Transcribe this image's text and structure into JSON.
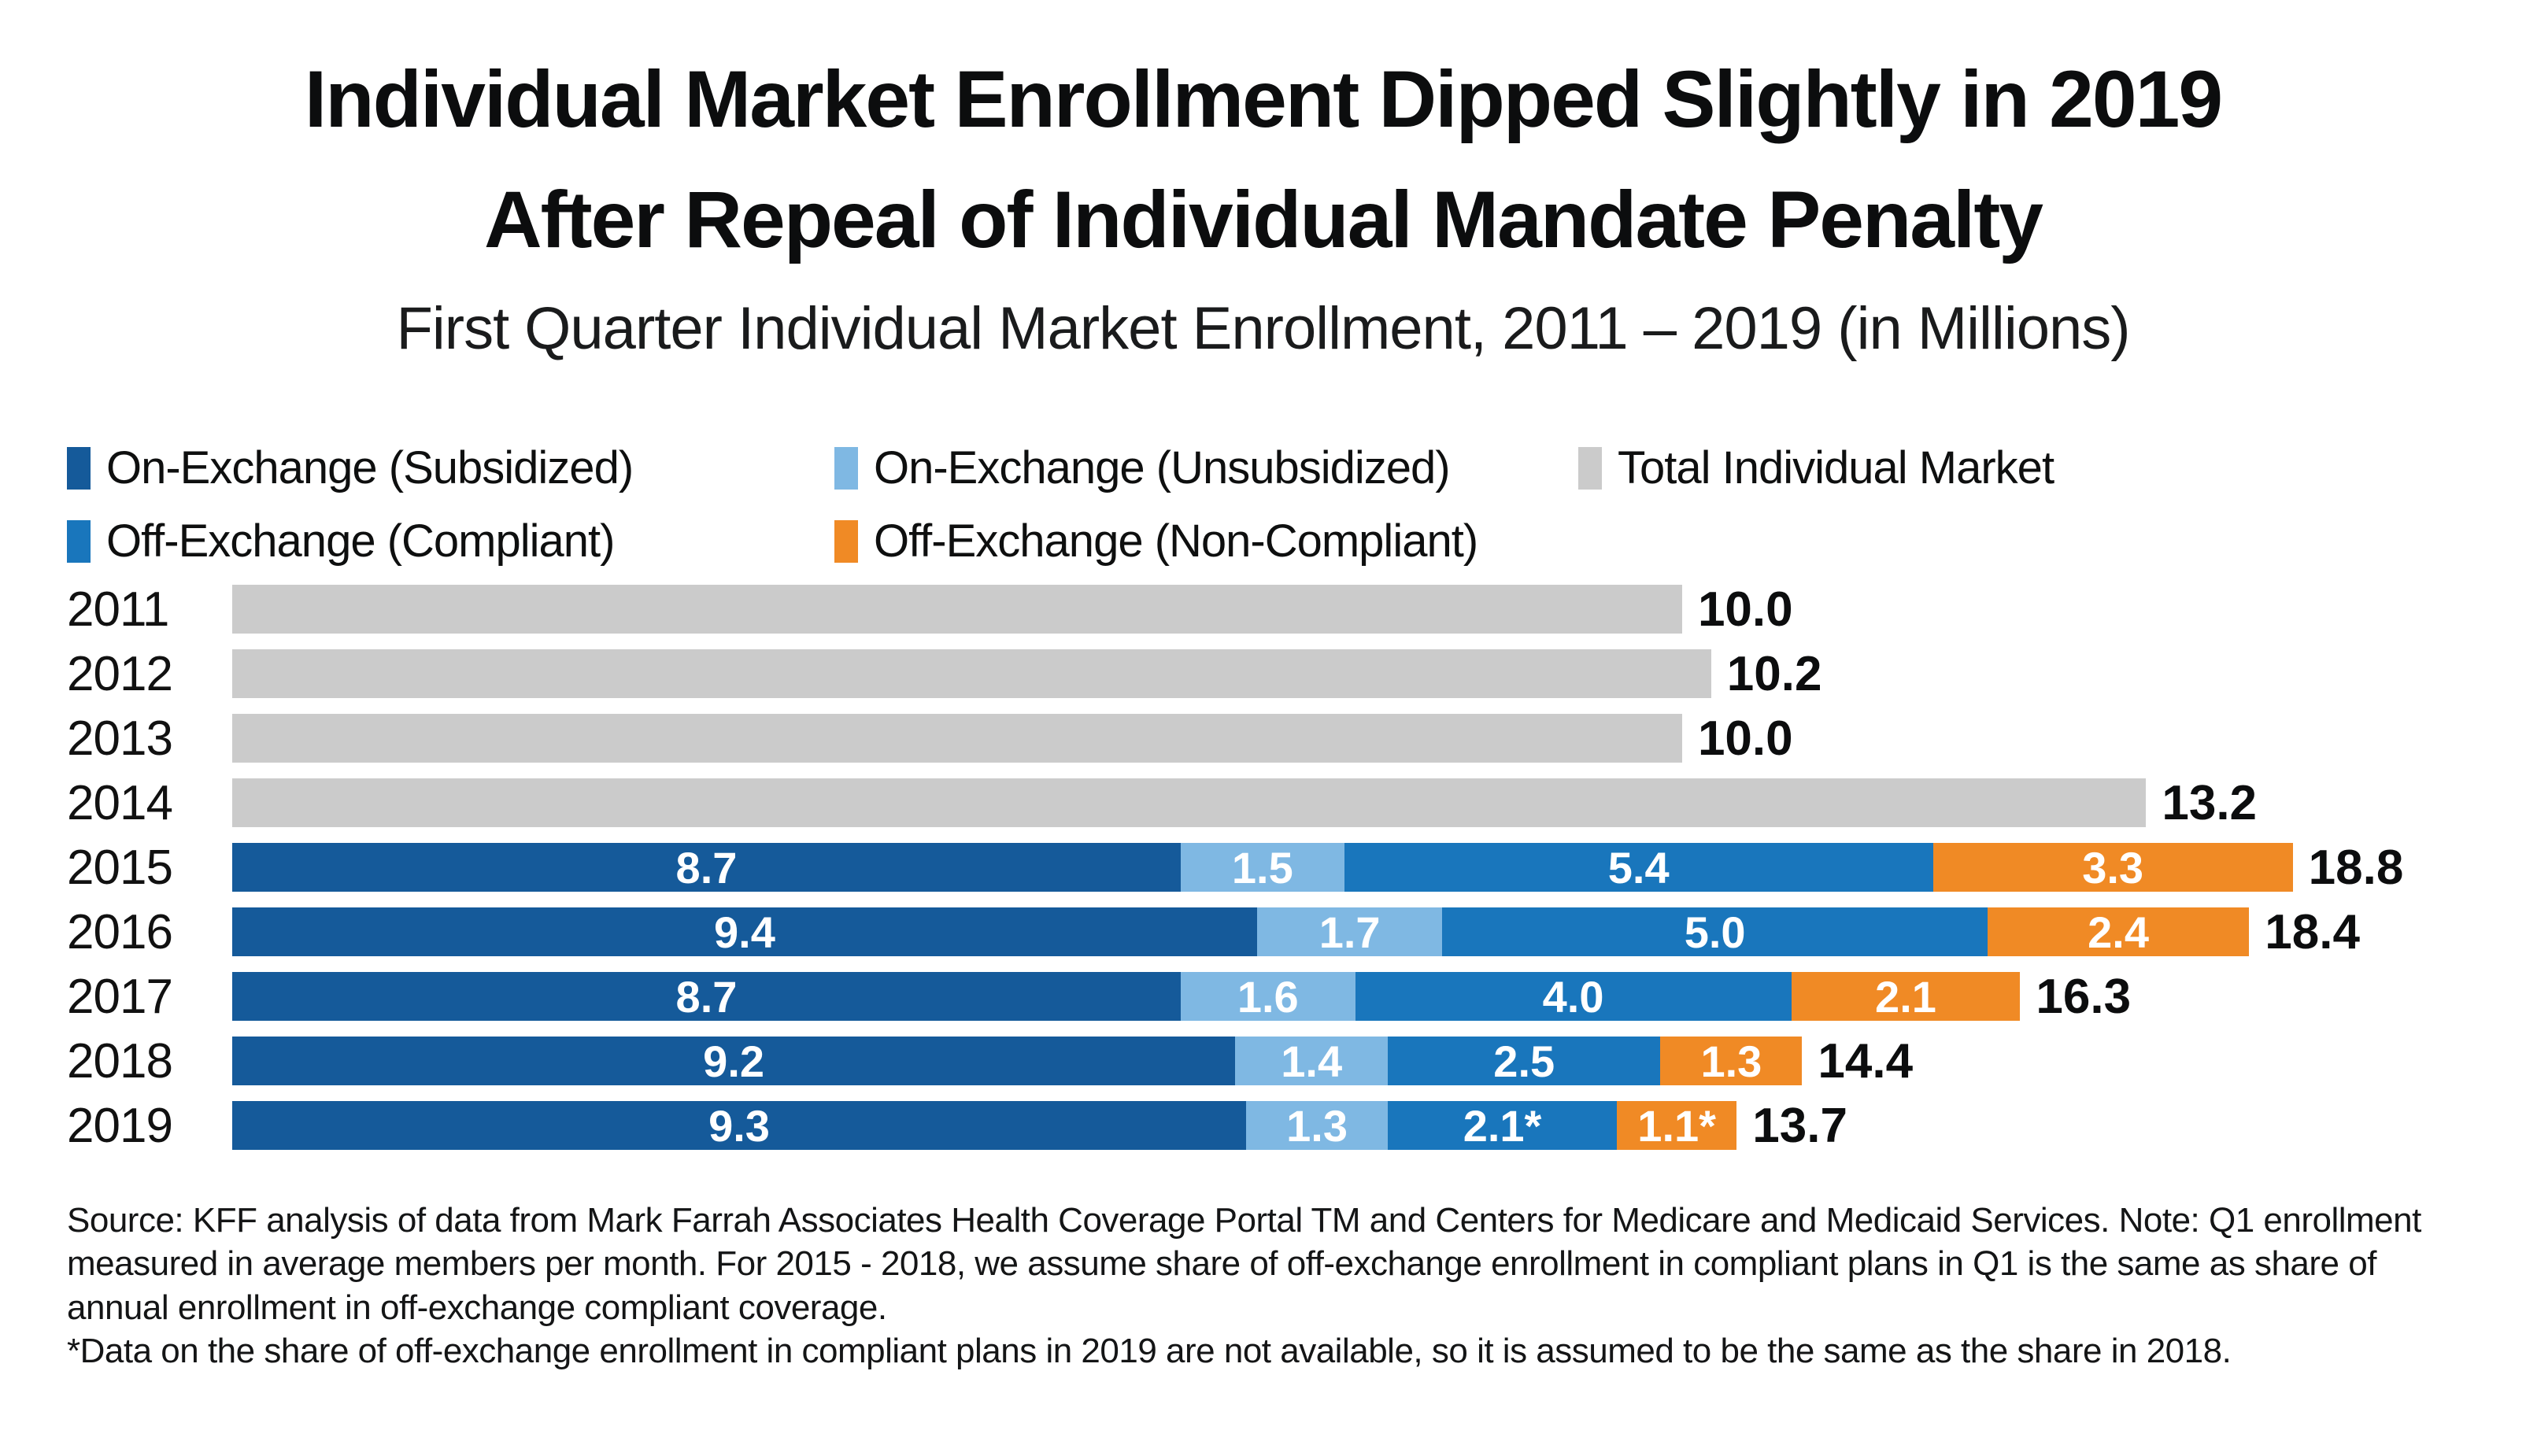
{
  "header": {
    "title_line1": "Individual Market Enrollment Dipped Slightly in 2019",
    "title_line2": "After Repeal of Individual Mandate Penalty",
    "subtitle": "First Quarter Individual Market Enrollment, 2011 – 2019 (in Millions)"
  },
  "legend": [
    {
      "label": "On-Exchange (Subsidized)",
      "color": "#155A9A"
    },
    {
      "label": "On-Exchange (Unsubsidized)",
      "color": "#7FB8E3"
    },
    {
      "label": "Total Individual Market",
      "color": "#CBCBCB"
    },
    {
      "label": "Off-Exchange (Compliant)",
      "color": "#1976BC"
    },
    {
      "label": "Off-Exchange (Non-Compliant)",
      "color": "#F08A25"
    }
  ],
  "chart_data": {
    "type": "bar",
    "orientation": "horizontal",
    "unit": "millions of enrollees",
    "title": "First Quarter Individual Market Enrollment, 2011 – 2019 (in Millions)",
    "categories": [
      "2011",
      "2012",
      "2013",
      "2014",
      "2015",
      "2016",
      "2017",
      "2018",
      "2019"
    ],
    "series_names": [
      "On-Exchange (Subsidized)",
      "On-Exchange (Unsubsidized)",
      "Off-Exchange (Compliant)",
      "Off-Exchange (Non-Compliant)",
      "Total Individual Market"
    ],
    "legend_position": "top-left",
    "grid": false,
    "rows": [
      {
        "year": "2011",
        "bar_style": "total",
        "total": 10.0,
        "total_label": "10.0",
        "segments": [
          {
            "series": "Total Individual Market",
            "value": 10.0,
            "label": "",
            "color": "#CBCBCB"
          }
        ]
      },
      {
        "year": "2012",
        "bar_style": "total",
        "total": 10.2,
        "total_label": "10.2",
        "segments": [
          {
            "series": "Total Individual Market",
            "value": 10.2,
            "label": "",
            "color": "#CBCBCB"
          }
        ]
      },
      {
        "year": "2013",
        "bar_style": "total",
        "total": 10.0,
        "total_label": "10.0",
        "segments": [
          {
            "series": "Total Individual Market",
            "value": 10.0,
            "label": "",
            "color": "#CBCBCB"
          }
        ]
      },
      {
        "year": "2014",
        "bar_style": "total",
        "total": 13.2,
        "total_label": "13.2",
        "segments": [
          {
            "series": "Total Individual Market",
            "value": 13.2,
            "label": "",
            "color": "#CBCBCB"
          }
        ]
      },
      {
        "year": "2015",
        "bar_style": "stacked",
        "total": 18.8,
        "total_label": "18.8",
        "segments": [
          {
            "series": "On-Exchange (Subsidized)",
            "value": 8.7,
            "label": "8.7",
            "color": "#155A9A"
          },
          {
            "series": "On-Exchange (Unsubsidized)",
            "value": 1.5,
            "label": "1.5",
            "color": "#7FB8E3"
          },
          {
            "series": "Off-Exchange (Compliant)",
            "value": 5.4,
            "label": "5.4",
            "color": "#1976BC"
          },
          {
            "series": "Off-Exchange (Non-Compliant)",
            "value": 3.3,
            "label": "3.3",
            "color": "#F08A25"
          }
        ]
      },
      {
        "year": "2016",
        "bar_style": "stacked",
        "total": 18.4,
        "total_label": "18.4",
        "segments": [
          {
            "series": "On-Exchange (Subsidized)",
            "value": 9.4,
            "label": "9.4",
            "color": "#155A9A"
          },
          {
            "series": "On-Exchange (Unsubsidized)",
            "value": 1.7,
            "label": "1.7",
            "color": "#7FB8E3"
          },
          {
            "series": "Off-Exchange (Compliant)",
            "value": 5.0,
            "label": "5.0",
            "color": "#1976BC"
          },
          {
            "series": "Off-Exchange (Non-Compliant)",
            "value": 2.4,
            "label": "2.4",
            "color": "#F08A25"
          }
        ]
      },
      {
        "year": "2017",
        "bar_style": "stacked",
        "total": 16.3,
        "total_label": "16.3",
        "segments": [
          {
            "series": "On-Exchange (Subsidized)",
            "value": 8.7,
            "label": "8.7",
            "color": "#155A9A"
          },
          {
            "series": "On-Exchange (Unsubsidized)",
            "value": 1.6,
            "label": "1.6",
            "color": "#7FB8E3"
          },
          {
            "series": "Off-Exchange (Compliant)",
            "value": 4.0,
            "label": "4.0",
            "color": "#1976BC"
          },
          {
            "series": "Off-Exchange (Non-Compliant)",
            "value": 2.1,
            "label": "2.1",
            "color": "#F08A25"
          }
        ]
      },
      {
        "year": "2018",
        "bar_style": "stacked",
        "total": 14.4,
        "total_label": "14.4",
        "segments": [
          {
            "series": "On-Exchange (Subsidized)",
            "value": 9.2,
            "label": "9.2",
            "color": "#155A9A"
          },
          {
            "series": "On-Exchange (Unsubsidized)",
            "value": 1.4,
            "label": "1.4",
            "color": "#7FB8E3"
          },
          {
            "series": "Off-Exchange (Compliant)",
            "value": 2.5,
            "label": "2.5",
            "color": "#1976BC"
          },
          {
            "series": "Off-Exchange (Non-Compliant)",
            "value": 1.3,
            "label": "1.3",
            "color": "#F08A25"
          }
        ]
      },
      {
        "year": "2019",
        "bar_style": "stacked",
        "total": 13.7,
        "total_label": "13.7",
        "segments": [
          {
            "series": "On-Exchange (Subsidized)",
            "value": 9.3,
            "label": "9.3",
            "color": "#155A9A"
          },
          {
            "series": "On-Exchange (Unsubsidized)",
            "value": 1.3,
            "label": "1.3",
            "color": "#7FB8E3"
          },
          {
            "series": "Off-Exchange (Compliant)",
            "value": 2.1,
            "label": "2.1*",
            "color": "#1976BC"
          },
          {
            "series": "Off-Exchange (Non-Compliant)",
            "value": 1.1,
            "label": "1.1*",
            "color": "#F08A25"
          }
        ]
      }
    ],
    "layout": {
      "total_bar_pct_per_unit": 6.321,
      "stacked_bar_pct_per_unit": 4.753,
      "note": "gray total bars and stacked bars are drawn at different pixel scales in the source image"
    }
  },
  "footer": {
    "source": "Source: KFF analysis of data from Mark Farrah Associates Health Coverage Portal TM and Centers for Medicare and Medicaid Services. Note: Q1 enrollment measured in average members per month. For 2015 - 2018, we assume share of off-exchange enrollment in compliant plans in Q1 is the same as share of annual enrollment in off-exchange compliant coverage.",
    "footnote": "*Data on the share of off-exchange enrollment in compliant plans in 2019 are not available, so it is assumed to be the same as the share in 2018."
  }
}
